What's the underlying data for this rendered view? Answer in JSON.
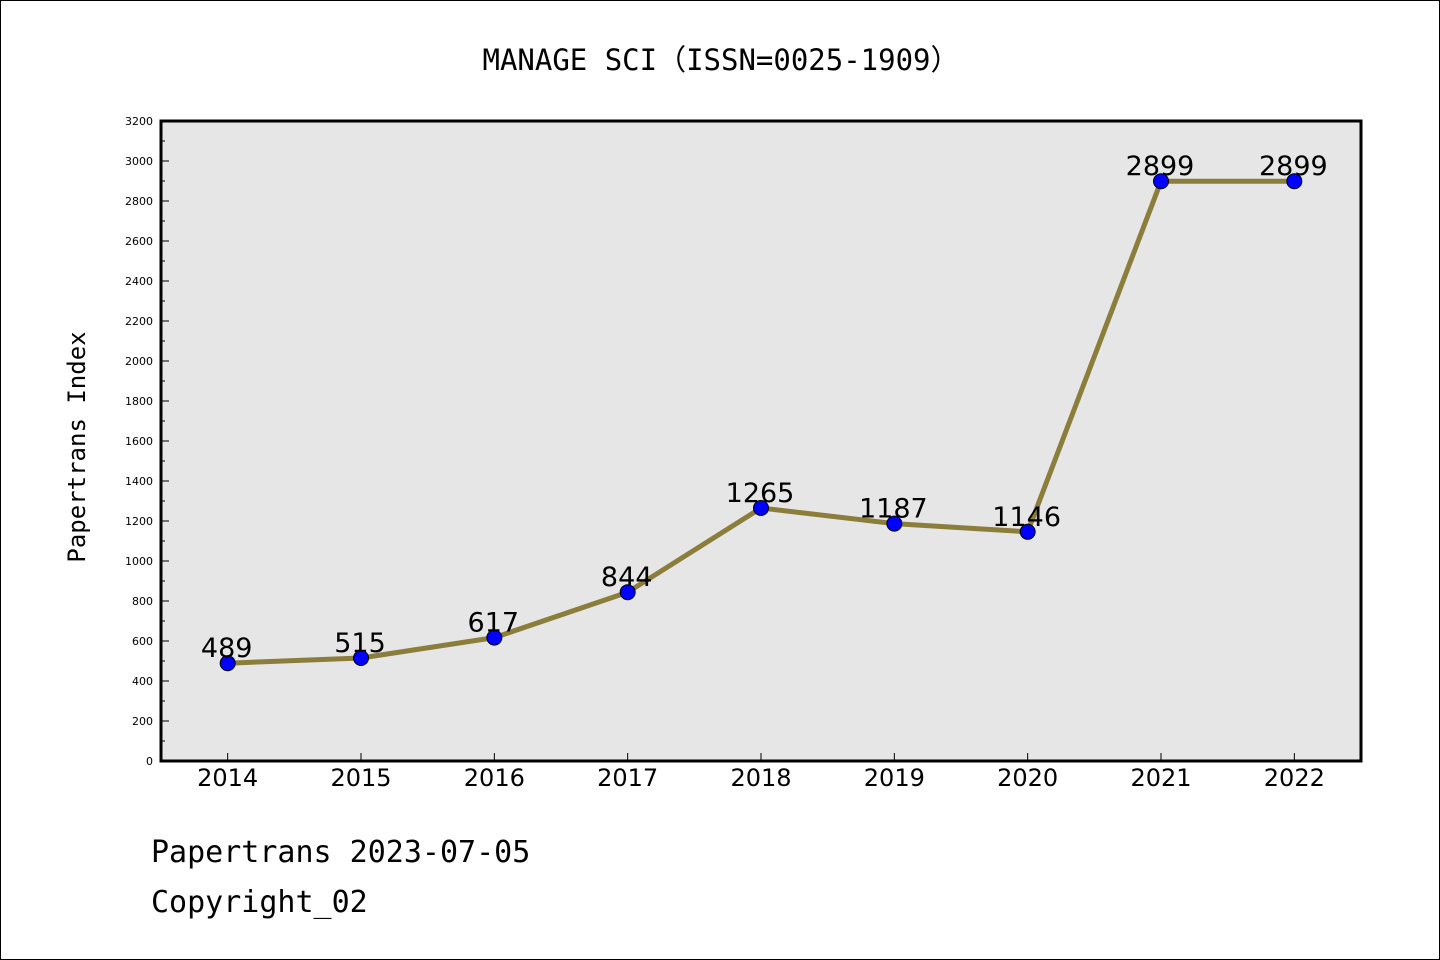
{
  "title": "MANAGE SCI（ISSN=0025-1909）",
  "footer": {
    "line1": "Papertrans 2023-07-05",
    "line2": "Copyright_02"
  },
  "chart_data": {
    "type": "line",
    "title": "MANAGE SCI（ISSN=0025-1909）",
    "xlabel": "",
    "ylabel": "Papertrans Index",
    "categories": [
      "2014",
      "2015",
      "2016",
      "2017",
      "2018",
      "2019",
      "2020",
      "2021",
      "2022"
    ],
    "values": [
      489,
      515,
      617,
      844,
      1265,
      1187,
      1146,
      2899,
      2899
    ],
    "value_labels": [
      "489",
      "515",
      "617",
      "844",
      "1265",
      "1187",
      "1146",
      "2899",
      "2899"
    ],
    "ylim": [
      0,
      3200
    ],
    "yticks": [
      "0",
      "200",
      "400",
      "600",
      "800",
      "1000",
      "1200",
      "1400",
      "1600",
      "1800",
      "2000",
      "2200",
      "2400",
      "2600",
      "2800",
      "3000",
      "3200"
    ],
    "grid": false,
    "legend": "none",
    "colors": {
      "line": "#8b7d3a",
      "marker": "#0000ff",
      "plot_background": "#e6e6e6"
    }
  }
}
